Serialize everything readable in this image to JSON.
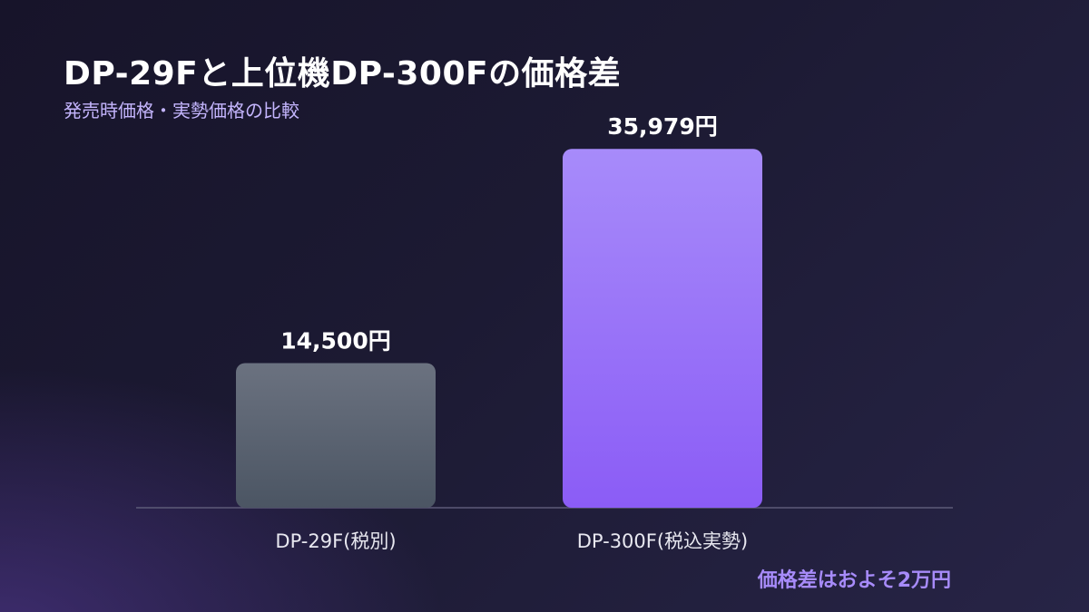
{
  "chart_data": {
    "type": "bar",
    "title": "DP-29Fと上位機DP-300Fの価格差",
    "subtitle": "発売時価格・実勢価格の比較",
    "categories": [
      "DP-29F(税別)",
      "DP-300F(税込実勢)"
    ],
    "values": [
      14500,
      35979
    ],
    "value_labels": [
      "14,500円",
      "35,979円"
    ],
    "unit": "円",
    "ylim": [
      0,
      40000
    ],
    "grid": false,
    "legend": "none",
    "bar_colors": [
      {
        "top": "#6b7280",
        "bottom": "#4b5563"
      },
      {
        "top": "#a78bfa",
        "bottom": "#8b5cf6"
      }
    ],
    "annotation": "価格差はおよそ2万円"
  }
}
